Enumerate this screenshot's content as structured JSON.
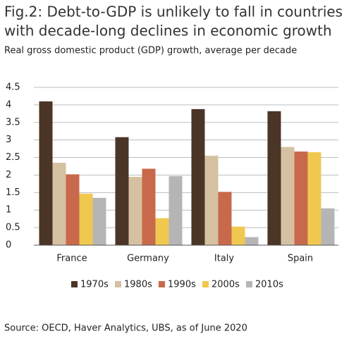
{
  "chart_data": {
    "type": "bar",
    "title": [
      "Fig.2: Debt-to-GDP is unlikely to fall in countries",
      "with decade-long declines in economic growth"
    ],
    "subtitle": "Real gross domestic product (GDP) growth, average per decade",
    "categories": [
      "France",
      "Germany",
      "Italy",
      "Spain"
    ],
    "series": [
      {
        "name": "1970s",
        "color": "#4b3526",
        "values": [
          4.1,
          3.08,
          3.88,
          3.82
        ]
      },
      {
        "name": "1980s",
        "color": "#d5c1a2",
        "values": [
          2.35,
          1.95,
          2.55,
          2.8
        ]
      },
      {
        "name": "1990s",
        "color": "#c8694c",
        "values": [
          2.02,
          2.18,
          1.52,
          2.67
        ]
      },
      {
        "name": "2000s",
        "color": "#f0c84f",
        "values": [
          1.47,
          0.77,
          0.53,
          2.65
        ]
      },
      {
        "name": "2010s",
        "color": "#b5b5b5",
        "values": [
          1.35,
          1.97,
          0.23,
          1.05
        ]
      }
    ],
    "ylim": [
      0,
      4.5
    ],
    "yticks": [
      0,
      0.5,
      1,
      1.5,
      2,
      2.5,
      3,
      3.5,
      4,
      4.5
    ],
    "grid": true,
    "legend": "bottom",
    "source": "Source: OECD, Haver Analytics, UBS, as of June 2020"
  }
}
